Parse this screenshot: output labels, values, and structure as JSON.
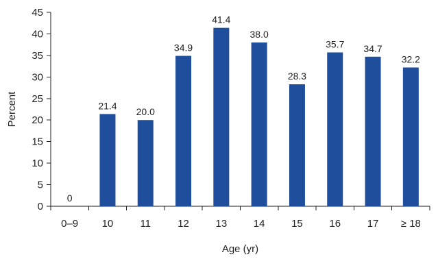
{
  "chart_data": {
    "type": "bar",
    "categories": [
      "0–9",
      "10",
      "11",
      "12",
      "13",
      "14",
      "15",
      "16",
      "17",
      "≥ 18"
    ],
    "values": [
      0,
      21.4,
      20.0,
      34.9,
      41.4,
      38.0,
      28.3,
      35.7,
      34.7,
      32.2
    ],
    "data_labels": [
      "0",
      "21.4",
      "20.0",
      "34.9",
      "41.4",
      "38.0",
      "28.3",
      "35.7",
      "34.7",
      "32.2"
    ],
    "xlabel": "Age (yr)",
    "ylabel": "Percent",
    "ylim": [
      0,
      45
    ],
    "yticks": [
      0,
      5,
      10,
      15,
      20,
      25,
      30,
      35,
      40,
      45
    ],
    "grid": false,
    "bar_color": "#1f4e9c"
  }
}
